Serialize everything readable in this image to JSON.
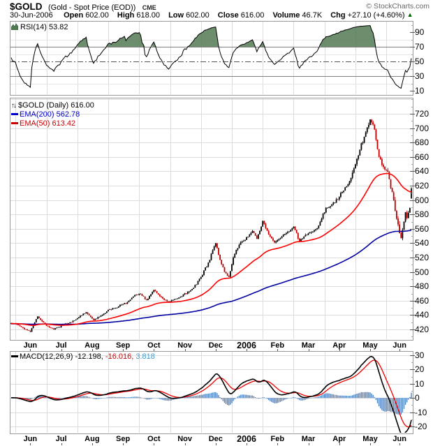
{
  "header": {
    "symbol": "$GOLD",
    "description": "(Gold - Spot Price (EOD))",
    "exchange": "CME",
    "copyright": "© StockCharts.com",
    "date": "30-Jun-2006",
    "quote": [
      {
        "label": "Open",
        "value": "602.00"
      },
      {
        "label": "High",
        "value": "618.00"
      },
      {
        "label": "Low",
        "value": "602.00"
      },
      {
        "label": "Close",
        "value": "616.00"
      },
      {
        "label": "Volume",
        "value": "46.7K"
      },
      {
        "label": "Chg",
        "value": "+27.10 (+4.60%)"
      }
    ],
    "chg_arrow": "▲"
  },
  "rsi_panel": {
    "icon": "area-chart-icon",
    "label": "RSI(14)",
    "value": "53.82",
    "ticks": [
      90,
      70,
      50,
      30,
      10
    ],
    "overbought": 70,
    "oversold": 30,
    "midline": 50
  },
  "main_panel": {
    "updown_icon": "↑↓",
    "legend_title": "$GOLD (Daily)",
    "legend_value": "616.00",
    "ema200_label": "EMA(200)",
    "ema200_value": "562.78",
    "ema50_label": "EMA(50)",
    "ema50_value": "613.42",
    "ticks": [
      720,
      700,
      680,
      660,
      640,
      620,
      600,
      580,
      560,
      540,
      520,
      500,
      480,
      460,
      440,
      420
    ]
  },
  "macd_panel": {
    "label": "MACD(12,26,9)",
    "macd_value": "-12.198,",
    "signal_value": "-16.016,",
    "hist_value": "3.818",
    "ticks": [
      30,
      20,
      10,
      0,
      -10,
      -20
    ]
  },
  "x_axis": {
    "labels": [
      {
        "text": "Jun"
      },
      {
        "text": "Jul"
      },
      {
        "text": "Aug"
      },
      {
        "text": "Sep"
      },
      {
        "text": "Oct"
      },
      {
        "text": "Nov"
      },
      {
        "text": "Dec"
      },
      {
        "text": "2006",
        "bold": true
      },
      {
        "text": "Feb"
      },
      {
        "text": "Mar"
      },
      {
        "text": "Apr"
      },
      {
        "text": "May"
      },
      {
        "text": "Jun"
      }
    ]
  },
  "colors": {
    "candle_up": "#000000",
    "candle_down": "#C00000",
    "ema50": "#FF0000",
    "ema200": "#0000A0",
    "macd_line": "#000000",
    "macd_signal": "#EE0000",
    "macd_hist": "#4E82C0",
    "rsi_line": "#000000",
    "rsi_fill": "#547A54",
    "band_line": "#808080",
    "mid_line": "#555555",
    "grid": "#DCDCDC",
    "border": "#999999",
    "legend_blue": "#0000CC",
    "legend_red": "#CC0000",
    "hist_text": "#3E99CC",
    "arrow_green": "#006600",
    "copyright_gray": "#666666"
  },
  "chart_data": {
    "type": "candlestick",
    "title": "$GOLD Gold - Spot Price (EOD) Daily, Jun 2005 - Jun 2006",
    "legend_position": "top-left",
    "grid": true,
    "panels": [
      {
        "name": "RSI(14)",
        "type": "line",
        "ylim": [
          5,
          105
        ],
        "last_value": 53.82
      },
      {
        "name": "price",
        "type": "candlestick",
        "ylim": [
          405,
          742
        ],
        "ytick_step": 20,
        "overlays": [
          {
            "name": "EMA(200)",
            "last_value": 562.78
          },
          {
            "name": "EMA(50)",
            "last_value": 613.42
          }
        ]
      },
      {
        "name": "MACD(12,26,9)",
        "type": "line+histogram",
        "ylim": [
          -27,
          33
        ],
        "ytick_step": 10,
        "last_values": {
          "macd": -12.198,
          "signal": -16.016,
          "hist": 3.818
        }
      }
    ],
    "x_range_days": 273,
    "price_close_keypoints": [
      [
        0,
        429
      ],
      [
        3,
        428
      ],
      [
        8,
        422
      ],
      [
        13,
        417
      ],
      [
        18,
        438
      ],
      [
        24,
        425
      ],
      [
        29,
        420
      ],
      [
        35,
        426
      ],
      [
        41,
        430
      ],
      [
        46,
        437
      ],
      [
        51,
        444
      ],
      [
        56,
        433
      ],
      [
        61,
        439
      ],
      [
        67,
        448
      ],
      [
        73,
        452
      ],
      [
        79,
        458
      ],
      [
        84,
        468
      ],
      [
        88,
        469
      ],
      [
        92,
        461
      ],
      [
        97,
        475
      ],
      [
        102,
        465
      ],
      [
        107,
        458
      ],
      [
        113,
        463
      ],
      [
        119,
        470
      ],
      [
        124,
        478
      ],
      [
        129,
        493
      ],
      [
        131,
        502
      ],
      [
        134,
        513
      ],
      [
        137,
        530
      ],
      [
        139,
        540
      ],
      [
        142,
        517
      ],
      [
        145,
        500
      ],
      [
        148,
        493
      ],
      [
        151,
        520
      ],
      [
        156,
        541
      ],
      [
        161,
        549
      ],
      [
        164,
        557
      ],
      [
        167,
        546
      ],
      [
        171,
        571
      ],
      [
        175,
        552
      ],
      [
        179,
        541
      ],
      [
        184,
        549
      ],
      [
        188,
        556
      ],
      [
        192,
        563
      ],
      [
        196,
        543
      ],
      [
        200,
        551
      ],
      [
        204,
        555
      ],
      [
        208,
        561
      ],
      [
        212,
        581
      ],
      [
        214,
        589
      ],
      [
        218,
        594
      ],
      [
        222,
        601
      ],
      [
        226,
        613
      ],
      [
        230,
        626
      ],
      [
        233,
        644
      ],
      [
        237,
        670
      ],
      [
        240,
        688
      ],
      [
        242,
        701
      ],
      [
        244,
        712
      ],
      [
        246,
        705
      ],
      [
        248,
        684
      ],
      [
        250,
        660
      ],
      [
        252,
        649
      ],
      [
        255,
        642
      ],
      [
        257,
        629
      ],
      [
        259,
        611
      ],
      [
        261,
        585
      ],
      [
        263,
        566
      ],
      [
        265,
        547
      ],
      [
        267,
        570
      ],
      [
        268,
        583
      ],
      [
        269,
        575
      ],
      [
        271,
        589
      ],
      [
        272,
        616
      ]
    ],
    "volatility_keypoints": [
      [
        0,
        2.2
      ],
      [
        66,
        2.8
      ],
      [
        108,
        3.2
      ],
      [
        129,
        4.5
      ],
      [
        150,
        4.5
      ],
      [
        171,
        5
      ],
      [
        192,
        5
      ],
      [
        213,
        6
      ],
      [
        237,
        8
      ],
      [
        248,
        9
      ],
      [
        255,
        9
      ],
      [
        265,
        10
      ],
      [
        272,
        6
      ]
    ],
    "last_bar": {
      "day": 272,
      "open": 602,
      "high": 618,
      "low": 602,
      "close": 616
    },
    "indicators": {
      "rsi_period": 14,
      "ema_fast": 50,
      "ema_slow": 200,
      "macd_params": [
        12,
        26,
        9
      ]
    },
    "month_boundaries_day": [
      3,
      24,
      45,
      66,
      87,
      108,
      129,
      150,
      171,
      192,
      213,
      234,
      255
    ],
    "month_label_days": [
      13,
      34,
      55,
      76,
      97,
      118,
      139,
      160,
      181,
      202,
      223,
      244,
      264
    ]
  }
}
